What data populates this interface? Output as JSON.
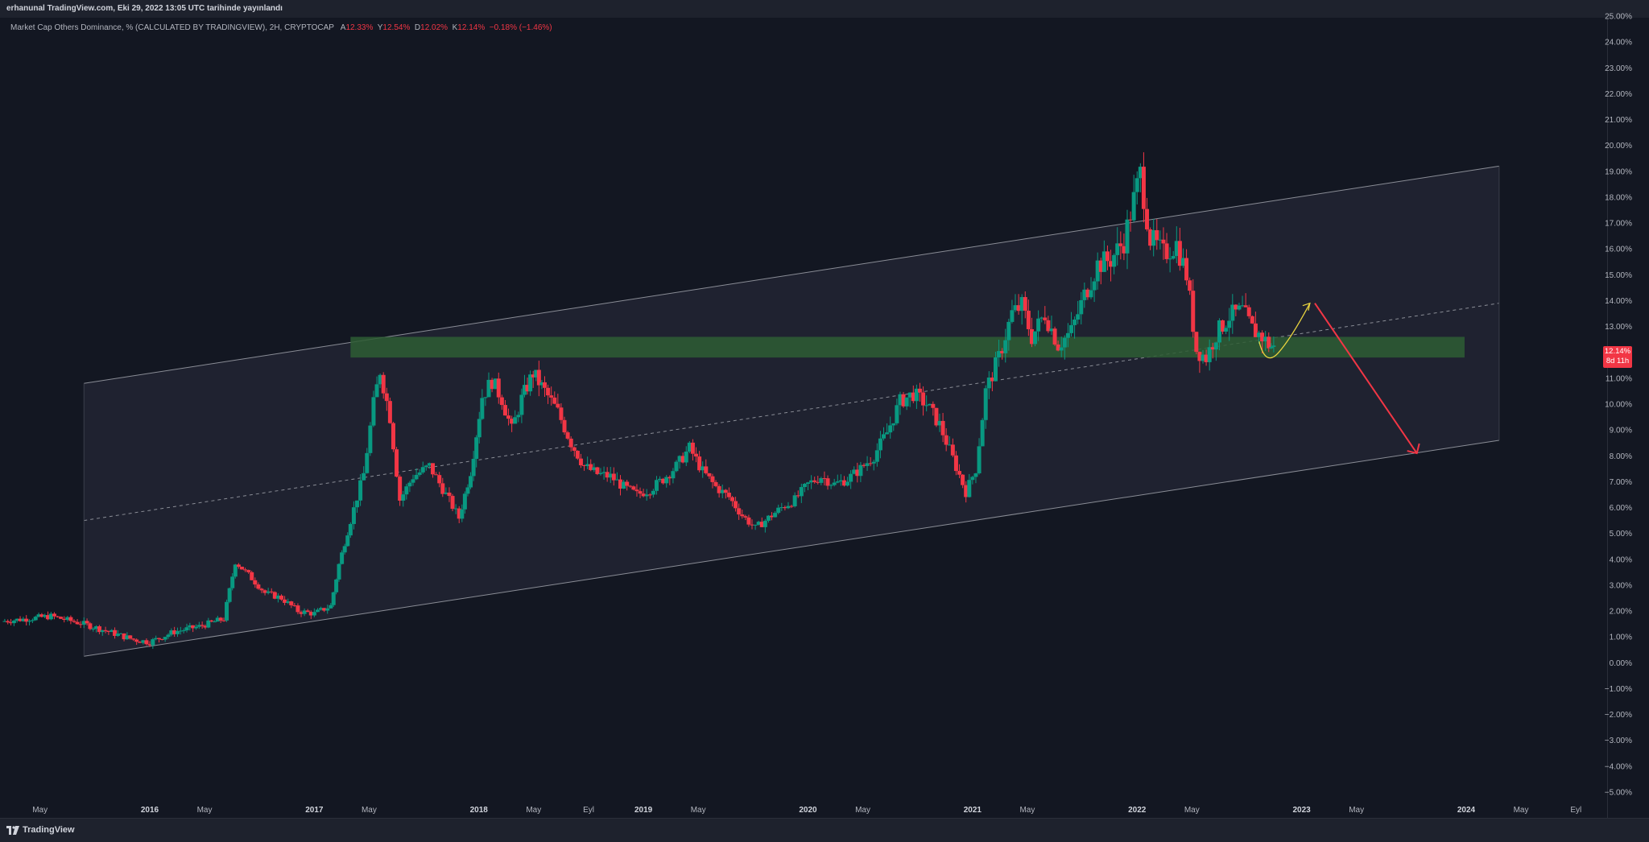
{
  "header": {
    "published": "erhanunal TradingView.com, Eki 29, 2022 13:05 UTC tarihinde yayınlandı"
  },
  "legend": {
    "symbol": "Market Cap Others Dominance, % (CALCULATED BY TRADINGVIEW), 2H, CRYPTOCAP",
    "open_label": "A",
    "open": "12.33%",
    "high_label": "Y",
    "high": "12.54%",
    "low_label": "D",
    "low": "12.02%",
    "close_label": "K",
    "close": "12.14%",
    "change": "−0.18% (−1.46%)"
  },
  "price_badge": {
    "price": "12.14%",
    "countdown": "8d 11h"
  },
  "footer": {
    "brand": "TradingView"
  },
  "colors": {
    "up": "#089981",
    "down": "#f23645",
    "zone": "#2e5d34",
    "channel": "#2a2e39",
    "arrow_up": "#e8d33f",
    "arrow_down": "#f23645"
  },
  "chart_data": {
    "type": "candlestick",
    "title": "Market Cap Others Dominance, %",
    "y_unit": "%",
    "ylim": [
      -5.0,
      25.0
    ],
    "y_ticks": [
      "25.00%",
      "24.00%",
      "23.00%",
      "22.00%",
      "21.00%",
      "20.00%",
      "19.00%",
      "18.00%",
      "17.00%",
      "16.00%",
      "15.00%",
      "14.00%",
      "13.00%",
      "12.00%",
      "11.00%",
      "10.00%",
      "9.00%",
      "8.00%",
      "7.00%",
      "6.00%",
      "5.00%",
      "4.00%",
      "3.00%",
      "2.00%",
      "1.00%",
      "0.00%",
      "−1.00%",
      "−2.00%",
      "−3.00%",
      "−4.00%",
      "−5.00%"
    ],
    "x_ticks": [
      {
        "label": "May",
        "t": 2015.333
      },
      {
        "label": "2016",
        "t": 2016.0
      },
      {
        "label": "May",
        "t": 2016.333
      },
      {
        "label": "2017",
        "t": 2017.0
      },
      {
        "label": "May",
        "t": 2017.333
      },
      {
        "label": "2018",
        "t": 2018.0
      },
      {
        "label": "May",
        "t": 2018.333
      },
      {
        "label": "Eyl",
        "t": 2018.667
      },
      {
        "label": "2019",
        "t": 2019.0
      },
      {
        "label": "May",
        "t": 2019.333
      },
      {
        "label": "2020",
        "t": 2020.0
      },
      {
        "label": "May",
        "t": 2020.333
      },
      {
        "label": "2021",
        "t": 2021.0
      },
      {
        "label": "May",
        "t": 2021.333
      },
      {
        "label": "2022",
        "t": 2022.0
      },
      {
        "label": "May",
        "t": 2022.333
      },
      {
        "label": "2023",
        "t": 2023.0
      },
      {
        "label": "May",
        "t": 2023.333
      },
      {
        "label": "2024",
        "t": 2024.0
      },
      {
        "label": "May",
        "t": 2024.333
      },
      {
        "label": "Eyl",
        "t": 2024.667
      }
    ],
    "x_range": [
      2015.08,
      2025.04
    ],
    "series": [
      {
        "name": "Others Dominance",
        "points": [
          [
            2015.1,
            1.6
          ],
          [
            2015.25,
            1.7
          ],
          [
            2015.4,
            1.8
          ],
          [
            2015.6,
            1.5
          ],
          [
            2015.75,
            1.2
          ],
          [
            2015.9,
            0.9
          ],
          [
            2016.0,
            0.8
          ],
          [
            2016.15,
            1.2
          ],
          [
            2016.3,
            1.4
          ],
          [
            2016.45,
            1.7
          ],
          [
            2016.52,
            3.9
          ],
          [
            2016.6,
            3.4
          ],
          [
            2016.7,
            2.7
          ],
          [
            2016.8,
            2.5
          ],
          [
            2016.9,
            2.0
          ],
          [
            2017.0,
            1.9
          ],
          [
            2017.1,
            2.2
          ],
          [
            2017.15,
            3.8
          ],
          [
            2017.22,
            5.5
          ],
          [
            2017.3,
            7.3
          ],
          [
            2017.36,
            10.0
          ],
          [
            2017.4,
            11.3
          ],
          [
            2017.46,
            9.5
          ],
          [
            2017.52,
            6.3
          ],
          [
            2017.6,
            7.2
          ],
          [
            2017.7,
            7.6
          ],
          [
            2017.8,
            6.5
          ],
          [
            2017.88,
            5.6
          ],
          [
            2017.95,
            7.4
          ],
          [
            2018.02,
            10.3
          ],
          [
            2018.08,
            10.9
          ],
          [
            2018.14,
            10.2
          ],
          [
            2018.2,
            9.0
          ],
          [
            2018.26,
            10.2
          ],
          [
            2018.33,
            11.2
          ],
          [
            2018.4,
            10.5
          ],
          [
            2018.48,
            9.7
          ],
          [
            2018.56,
            8.5
          ],
          [
            2018.64,
            7.6
          ],
          [
            2018.72,
            7.3
          ],
          [
            2018.8,
            7.2
          ],
          [
            2018.88,
            6.8
          ],
          [
            2018.96,
            6.5
          ],
          [
            2019.04,
            6.7
          ],
          [
            2019.12,
            7.1
          ],
          [
            2019.2,
            7.6
          ],
          [
            2019.28,
            8.3
          ],
          [
            2019.36,
            7.4
          ],
          [
            2019.44,
            6.8
          ],
          [
            2019.52,
            6.4
          ],
          [
            2019.6,
            5.7
          ],
          [
            2019.68,
            5.2
          ],
          [
            2019.76,
            5.6
          ],
          [
            2019.84,
            6.0
          ],
          [
            2019.92,
            6.3
          ],
          [
            2020.0,
            6.9
          ],
          [
            2020.08,
            7.2
          ],
          [
            2020.16,
            6.9
          ],
          [
            2020.24,
            7.1
          ],
          [
            2020.32,
            7.5
          ],
          [
            2020.4,
            8.0
          ],
          [
            2020.48,
            8.9
          ],
          [
            2020.56,
            10.1
          ],
          [
            2020.64,
            10.4
          ],
          [
            2020.72,
            10.0
          ],
          [
            2020.8,
            9.2
          ],
          [
            2020.88,
            7.9
          ],
          [
            2020.96,
            6.6
          ],
          [
            2021.02,
            7.5
          ],
          [
            2021.08,
            10.5
          ],
          [
            2021.16,
            11.8
          ],
          [
            2021.24,
            13.5
          ],
          [
            2021.3,
            13.8
          ],
          [
            2021.36,
            12.6
          ],
          [
            2021.44,
            13.5
          ],
          [
            2021.52,
            12.3
          ],
          [
            2021.6,
            12.8
          ],
          [
            2021.68,
            14.2
          ],
          [
            2021.76,
            15.4
          ],
          [
            2021.84,
            15.6
          ],
          [
            2021.92,
            16.3
          ],
          [
            2021.98,
            17.9
          ],
          [
            2022.02,
            18.9
          ],
          [
            2022.08,
            16.4
          ],
          [
            2022.16,
            15.8
          ],
          [
            2022.24,
            16.2
          ],
          [
            2022.3,
            15.0
          ],
          [
            2022.36,
            12.1
          ],
          [
            2022.42,
            11.8
          ],
          [
            2022.48,
            12.7
          ],
          [
            2022.56,
            13.4
          ],
          [
            2022.64,
            13.6
          ],
          [
            2022.7,
            12.9
          ],
          [
            2022.76,
            12.6
          ],
          [
            2022.8,
            12.3
          ],
          [
            2022.83,
            12.14
          ]
        ]
      }
    ],
    "annotations": {
      "channel_upper": [
        [
          2015.6,
          10.8
        ],
        [
          2024.2,
          19.2
        ]
      ],
      "channel_mid": [
        [
          2015.6,
          5.5
        ],
        [
          2024.2,
          13.9
        ]
      ],
      "channel_lower": [
        [
          2015.6,
          0.25
        ],
        [
          2024.2,
          8.6
        ]
      ],
      "resistance_zone": {
        "x": [
          2017.22,
          2023.99
        ],
        "y": [
          11.8,
          12.6
        ]
      },
      "projection_up": [
        [
          2022.8,
          11.8
        ],
        [
          2023.05,
          13.9
        ]
      ],
      "projection_down": [
        [
          2023.08,
          13.9
        ],
        [
          2023.7,
          8.1
        ]
      ]
    }
  }
}
